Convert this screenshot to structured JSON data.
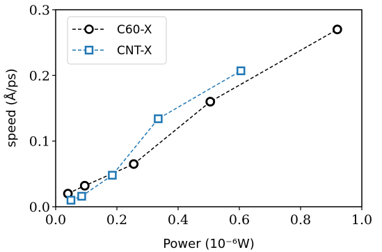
{
  "chart_data": {
    "type": "line",
    "xlabel": "Power (10⁻⁶W)",
    "ylabel": "speed (Å/ps)",
    "xlim": [
      0.0,
      1.0
    ],
    "ylim": [
      0.0,
      0.3
    ],
    "xticks": [
      "0.0",
      "0.2",
      "0.4",
      "0.6",
      "0.8",
      "1.0"
    ],
    "yticks": [
      "0.0",
      "0.1",
      "0.2",
      "0.3"
    ],
    "grid": false,
    "legend_position": "top-left",
    "series": [
      {
        "name": "C60-X",
        "color": "#000000",
        "marker": "circle",
        "line_style": "dashed",
        "x": [
          0.04,
          0.095,
          0.255,
          0.505,
          0.92
        ],
        "y": [
          0.02,
          0.032,
          0.065,
          0.16,
          0.27
        ]
      },
      {
        "name": "CNT-X",
        "color": "#1f77b4",
        "marker": "square",
        "line_style": "dashed",
        "x": [
          0.05,
          0.085,
          0.185,
          0.335,
          0.605
        ],
        "y": [
          0.01,
          0.016,
          0.048,
          0.134,
          0.207
        ]
      }
    ]
  }
}
